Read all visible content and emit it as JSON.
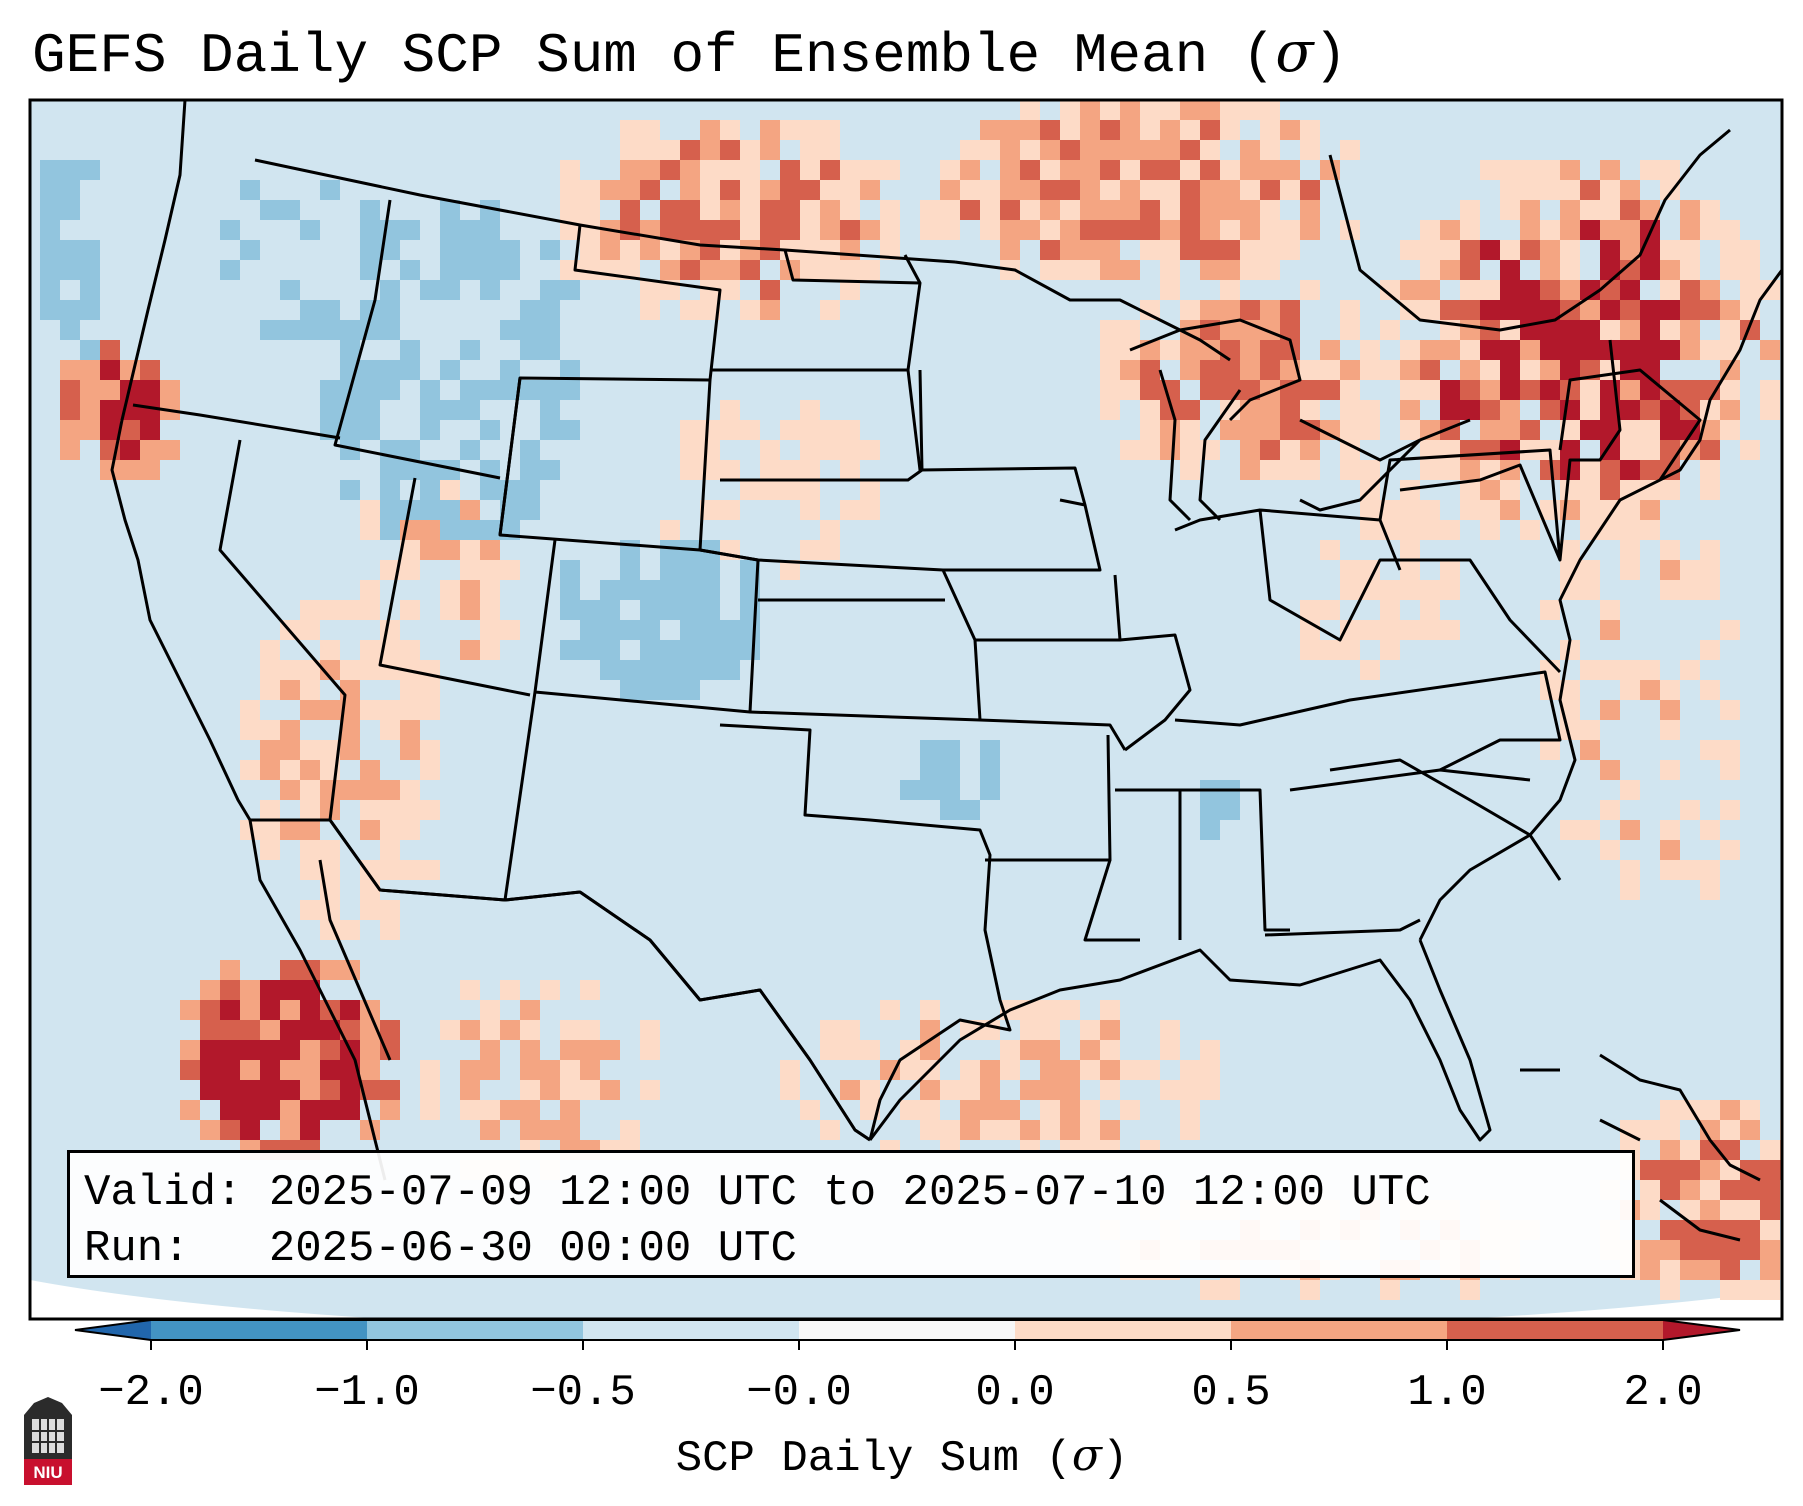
{
  "title": {
    "text": "GEFS Daily SCP Sum of Ensemble Mean (",
    "symbol": "σ",
    "close": ")"
  },
  "info": {
    "valid_line": "Valid: 2025-07-09 12:00 UTC to 2025-07-10 12:00 UTC",
    "run_line": "Run:   2025-06-30 00:00 UTC"
  },
  "colorbar": {
    "label": "SCP Daily Sum (",
    "label_symbol": "σ",
    "label_close": ")",
    "ticks": [
      "−2.0",
      "−1.0",
      "−0.5",
      "−0.0",
      "0.0",
      "0.5",
      "1.0",
      "2.0"
    ],
    "boundaries": [
      -2.0,
      -1.0,
      -0.5,
      -0.0,
      0.0,
      0.5,
      1.0,
      2.0
    ],
    "colors": [
      "#2166ac",
      "#4393c3",
      "#92c5de",
      "#d1e5f0",
      "#f7f7f7",
      "#fddbc7",
      "#f4a582",
      "#d6604d",
      "#b2182b"
    ]
  },
  "map": {
    "domain_description": "CONUS",
    "background_color": "#d1e5f0",
    "outline_color": "#000000"
  },
  "logo": {
    "text": "NIU",
    "color": "#c8102e"
  }
}
